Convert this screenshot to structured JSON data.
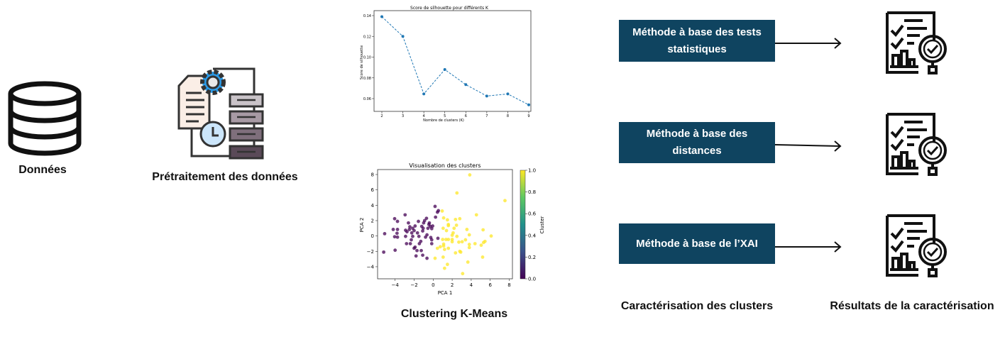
{
  "steps": {
    "data_label": "Données",
    "preprocessing_label": "Prétraitement des données",
    "clustering_label": "Clustering K-Means",
    "characterization_label": "Caractérisation des clusters",
    "results_label": "Résultats de la caractérisation"
  },
  "methods": [
    {
      "label": "Méthode à base des tests statistiques"
    },
    {
      "label": "Méthode à base des distances"
    },
    {
      "label": "Méthode à base de l’XAI"
    }
  ],
  "colors": {
    "method_box": "#0f4460",
    "gear": "#2b9be8",
    "clock": "#cce6fb",
    "cluster0": "#440154",
    "cluster1": "#fde725",
    "line": "#1f77b4"
  },
  "icons": [
    "database-icon",
    "preprocessing-icon",
    "arrow-right-icon",
    "report-magnifier-icon"
  ],
  "chart_data": [
    {
      "type": "line",
      "title": "Score de silhouette pour différents K",
      "xlabel": "Nombre de clusters (K)",
      "ylabel": "Score de silhouette",
      "x": [
        2,
        3,
        4,
        5,
        6,
        7,
        8,
        9
      ],
      "y": [
        0.139,
        0.12,
        0.0645,
        0.088,
        0.0735,
        0.0625,
        0.0645,
        0.054
      ],
      "xticks": [
        "2",
        "3",
        "4",
        "5",
        "6",
        "7",
        "8",
        "9"
      ],
      "yticks": [
        "0.06",
        "0.08",
        "0.10",
        "0.12",
        "0.14"
      ],
      "line_style": "dashed",
      "grid": false
    },
    {
      "type": "scatter",
      "title": "Visualisation des clusters",
      "xlabel": "PCA 1",
      "ylabel": "PCA 2",
      "xticks": [
        "−4",
        "−2",
        "0",
        "2",
        "4",
        "6",
        "8"
      ],
      "yticks": [
        "−4",
        "−2",
        "0",
        "2",
        "4",
        "6",
        "8"
      ],
      "colorbar_label": "Cluster",
      "colorbar_ticks": [
        "0.0",
        "0.2",
        "0.4",
        "0.6",
        "0.8",
        "1.0"
      ],
      "colormap": "viridis",
      "series": [
        {
          "cluster": 0,
          "points": [
            [
              -5.1,
              0.3
            ],
            [
              -5.2,
              -2.1
            ],
            [
              -4.05,
              2.25
            ],
            [
              -3.75,
              1.9
            ],
            [
              -4.2,
              0.85
            ],
            [
              -3.75,
              0.85
            ],
            [
              -4.05,
              -0.1
            ],
            [
              -3.8,
              0.35
            ],
            [
              -3.75,
              -0.15
            ],
            [
              -4,
              -1.85
            ],
            [
              -2.95,
              2.75
            ],
            [
              -2.9,
              0.75
            ],
            [
              -2.9,
              -0.05
            ],
            [
              -2.6,
              1.7
            ],
            [
              -2.5,
              0.85
            ],
            [
              -2.45,
              1.2
            ],
            [
              -2.25,
              0.4
            ],
            [
              -2.3,
              -0.5
            ],
            [
              -2.15,
              -0.05
            ],
            [
              -2.0,
              0.7
            ],
            [
              -1.9,
              1.3
            ],
            [
              -2.8,
              -1.0
            ],
            [
              -2.4,
              -1.0
            ],
            [
              -2,
              -1.6
            ],
            [
              -1.9,
              -1.45
            ],
            [
              -1.7,
              -1.9
            ],
            [
              -1.8,
              -2.6
            ],
            [
              -1.55,
              1.9
            ],
            [
              -1.5,
              -0.05
            ],
            [
              -1.45,
              -1.0
            ],
            [
              -1.3,
              -0.7
            ],
            [
              -1.25,
              -1.9
            ],
            [
              -1.1,
              -2.5
            ],
            [
              -1.1,
              0.65
            ],
            [
              -1.05,
              1.0
            ],
            [
              -1.2,
              1.25
            ],
            [
              -1,
              1.7
            ],
            [
              -0.9,
              2.0
            ],
            [
              -0.7,
              2.3
            ],
            [
              -0.8,
              -0.15
            ],
            [
              -0.65,
              0.15
            ],
            [
              -0.55,
              1.0
            ],
            [
              -0.45,
              1.5
            ],
            [
              -0.4,
              1.7
            ],
            [
              -0.3,
              1.25
            ],
            [
              -0.15,
              0.95
            ],
            [
              -0.25,
              -0.2
            ],
            [
              -0.15,
              -0.5
            ],
            [
              -0.15,
              -1.0
            ],
            [
              -0.65,
              -2.9
            ],
            [
              0.2,
              3.85
            ],
            [
              0.25,
              2.45
            ],
            [
              0.45,
              3.1
            ],
            [
              0.5,
              -0.3
            ],
            [
              0.55,
              3.3
            ],
            [
              -1.65,
              0.4
            ],
            [
              -2.15,
              1.0
            ],
            [
              -2.75,
              0.55
            ],
            [
              -0.05,
              1.3
            ]
          ]
        },
        {
          "cluster": 1,
          "points": [
            [
              3.85,
              7.95
            ],
            [
              2.5,
              5.6
            ],
            [
              7.55,
              4.6
            ],
            [
              0.95,
              3.25
            ],
            [
              1.1,
              2.35
            ],
            [
              1.5,
              2.1
            ],
            [
              1.6,
              1.5
            ],
            [
              1.6,
              1.35
            ],
            [
              1.05,
              1.0
            ],
            [
              2.35,
              2.15
            ],
            [
              2.8,
              2.25
            ],
            [
              4.55,
              2.75
            ],
            [
              2.45,
              1.4
            ],
            [
              1.4,
              0.7
            ],
            [
              2.1,
              0.4
            ],
            [
              2.0,
              0.1
            ],
            [
              2.5,
              -0.05
            ],
            [
              3.55,
              0.85
            ],
            [
              3.8,
              0.15
            ],
            [
              5.25,
              0.8
            ],
            [
              6.1,
              0
            ],
            [
              1.0,
              -0.45
            ],
            [
              1.35,
              -0.45
            ],
            [
              1.6,
              -0.45
            ],
            [
              2.0,
              -0.75
            ],
            [
              2.0,
              -0.45
            ],
            [
              2.7,
              -0.8
            ],
            [
              3.05,
              -0.75
            ],
            [
              3.4,
              -0.5
            ],
            [
              3.8,
              -1.1
            ],
            [
              3.8,
              -1.5
            ],
            [
              4.4,
              -1.0
            ],
            [
              5.05,
              -1.2
            ],
            [
              5.3,
              -0.85
            ],
            [
              5.45,
              -0.7
            ],
            [
              0.45,
              -1.6
            ],
            [
              0.75,
              -1.4
            ],
            [
              1.1,
              -1.3
            ],
            [
              1.2,
              -1.75
            ],
            [
              1.6,
              -1.6
            ],
            [
              1.1,
              -1.05
            ],
            [
              2.8,
              -2.0
            ],
            [
              2.9,
              -2.1
            ],
            [
              2.35,
              -2.2
            ],
            [
              0.2,
              -2.9
            ],
            [
              1.05,
              -2.75
            ],
            [
              1.5,
              -3.7
            ],
            [
              1.2,
              -4.2
            ],
            [
              3.65,
              -3.4
            ],
            [
              5.2,
              -2.75
            ],
            [
              3.1,
              -4.9
            ],
            [
              2.2,
              1.0
            ]
          ]
        }
      ],
      "xlim": [
        -5.8,
        8.4
      ],
      "ylim": [
        -5.4,
        8.6
      ],
      "grid": false
    }
  ]
}
